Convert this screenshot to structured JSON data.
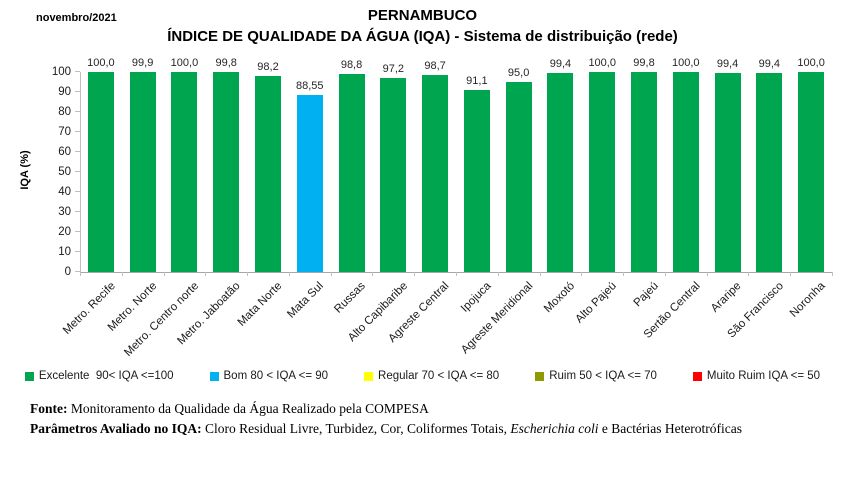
{
  "header": {
    "period_label": "novembro/2021",
    "title": "PERNAMBUCO",
    "subtitle": "ÍNDICE DE QUALIDADE DA ÁGUA (IQA) - Sistema de distribuição (rede)"
  },
  "chart_data": {
    "type": "bar",
    "title": "PERNAMBUCO",
    "subtitle": "ÍNDICE DE QUALIDADE DA ÁGUA (IQA) - Sistema de distribuição (rede)",
    "xlabel": "",
    "ylabel": "IQA (%)",
    "ylim": [
      0,
      100
    ],
    "yticks": [
      0,
      10,
      20,
      30,
      40,
      50,
      60,
      70,
      80,
      90,
      100
    ],
    "grid": false,
    "legend_position": "bottom",
    "categories": [
      "Metro. Recife",
      "Metro. Norte",
      "Metro. Centro norte",
      "Metro. Jaboatão",
      "Mata Norte",
      "Mata Sul",
      "Russas",
      "Alto Capibaribe",
      "Agreste Central",
      "Ipojuca",
      "Agreste Meridional",
      "Moxotó",
      "Alto Pajeú",
      "Pajeú",
      "Sertão Central",
      "Araripe",
      "São Francisco",
      "Noronha"
    ],
    "values": [
      100.0,
      99.9,
      100.0,
      99.8,
      98.2,
      88.55,
      98.8,
      97.2,
      98.7,
      91.1,
      95.0,
      99.4,
      100.0,
      99.8,
      100.0,
      99.4,
      99.4,
      100.0
    ],
    "value_labels": [
      "100,0",
      "99,9",
      "100,0",
      "99,8",
      "98,2",
      "88,55",
      "98,8",
      "97,2",
      "98,7",
      "91,1",
      "95,0",
      "99,4",
      "100,0",
      "99,8",
      "100,0",
      "99,4",
      "99,4",
      "100,0"
    ],
    "bar_colors": [
      "#00A550",
      "#00A550",
      "#00A550",
      "#00A550",
      "#00A550",
      "#00B0F0",
      "#00A550",
      "#00A550",
      "#00A550",
      "#00A550",
      "#00A550",
      "#00A550",
      "#00A550",
      "#00A550",
      "#00A550",
      "#00A550",
      "#00A550",
      "#00A550"
    ]
  },
  "legend": {
    "items": [
      {
        "label": "Excelente  90< IQA <=100",
        "color": "#00A550"
      },
      {
        "label": "Bom 80 < IQA <= 90",
        "color": "#00B0F0"
      },
      {
        "label": "Regular 70 < IQA <= 80",
        "color": "#FFFF00"
      },
      {
        "label": "Ruim 50 < IQA <= 70",
        "color": "#8F9900"
      },
      {
        "label": "Muito Ruim IQA <= 50",
        "color": "#FF0000"
      }
    ]
  },
  "footer": {
    "fonte_label": "Fonte:",
    "fonte_text": " Monitoramento da Qualidade da Água Realizado pela COMPESA",
    "parametros_label": "Parâmetros Avaliado no IQA:",
    "parametros_pre": " Cloro Residual Livre, Turbidez, Cor, Coliformes Totais, ",
    "parametros_italic": "Escherichia coli",
    "parametros_post": " e Bactérias Heterotróficas"
  },
  "colors": {
    "axis_line": "#BFBFBF",
    "value_label_text": "#262626"
  }
}
